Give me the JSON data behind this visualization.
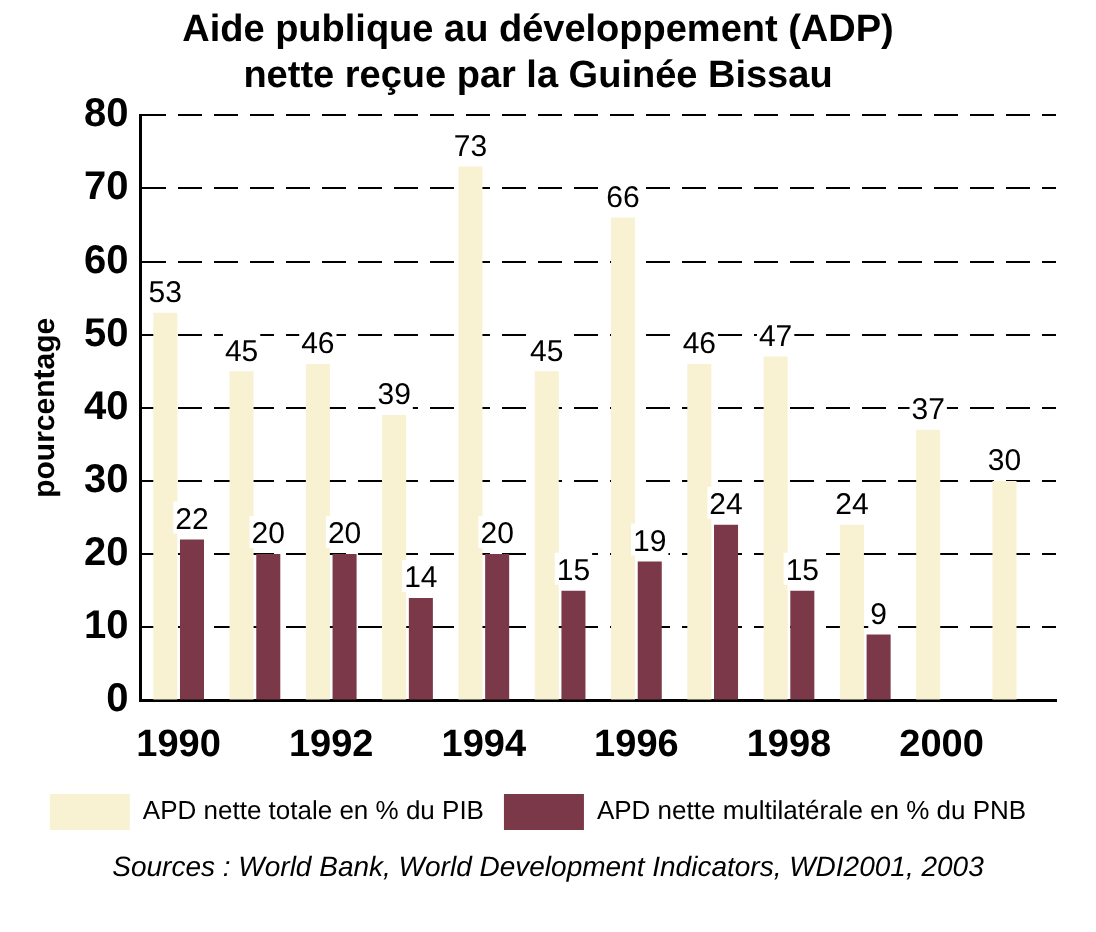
{
  "chart_data": {
    "type": "bar",
    "title": "Aide publique au développement (ADP)\nnette reçue par la Guinée Bissau",
    "ylabel": "pourcentage",
    "categories": [
      "1990",
      null,
      "1992",
      null,
      "1994",
      null,
      "1996",
      null,
      "1998",
      null,
      "2000",
      null
    ],
    "series": [
      {
        "name": "APD nette totale en % du PIB",
        "color": "#f8f1d2",
        "values": [
          53,
          45,
          46,
          39,
          73,
          45,
          66,
          46,
          47,
          24,
          37,
          30
        ]
      },
      {
        "name": "APD nette multilatérale en % du PNB",
        "color": "#7a3848",
        "values": [
          22,
          20,
          20,
          14,
          20,
          15,
          19,
          24,
          15,
          9,
          null,
          null
        ]
      }
    ],
    "ylim": [
      0,
      80
    ],
    "yticks": [
      0,
      10,
      20,
      30,
      40,
      50,
      60,
      70,
      80
    ],
    "grid": "y",
    "data_labels": true,
    "legend": "bottom",
    "annotations": [
      "Sources : World Bank, World Development Indicators, WDI2001, 2003"
    ]
  }
}
